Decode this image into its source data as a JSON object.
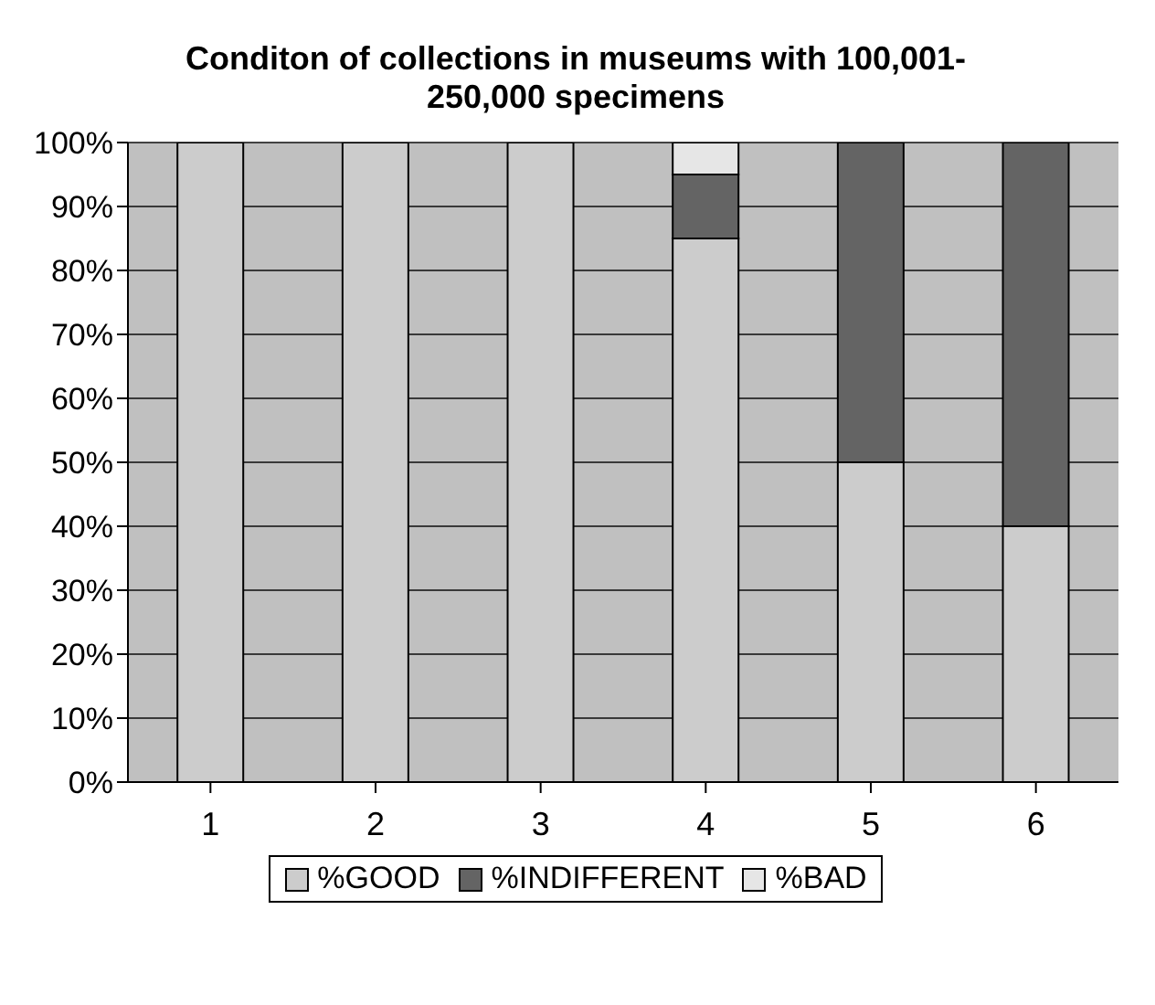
{
  "chart_data": {
    "type": "bar",
    "title": "Conditon of collections in museums with 100,001-250,000 specimens",
    "categories": [
      "1",
      "2",
      "3",
      "4",
      "5",
      "6"
    ],
    "stacked": true,
    "series": [
      {
        "name": "%GOOD",
        "color": "#cccccc",
        "values": [
          100,
          100,
          100,
          85,
          50,
          40
        ]
      },
      {
        "name": "%INDIFFERENT",
        "color": "#646464",
        "values": [
          0,
          0,
          0,
          10,
          50,
          60
        ]
      },
      {
        "name": "%BAD",
        "color": "#e6e6e6",
        "values": [
          0,
          0,
          0,
          5,
          0,
          0
        ]
      }
    ],
    "ylim": [
      0,
      100
    ],
    "yticks": [
      {
        "value": 0,
        "label": "0%"
      },
      {
        "value": 10,
        "label": "10%"
      },
      {
        "value": 20,
        "label": "20%"
      },
      {
        "value": 30,
        "label": "30%"
      },
      {
        "value": 40,
        "label": "40%"
      },
      {
        "value": 50,
        "label": "50%"
      },
      {
        "value": 60,
        "label": "60%"
      },
      {
        "value": 70,
        "label": "70%"
      },
      {
        "value": 80,
        "label": "80%"
      },
      {
        "value": 90,
        "label": "90%"
      },
      {
        "value": 100,
        "label": "100%"
      }
    ],
    "grid": "y",
    "legend": "bottom"
  }
}
